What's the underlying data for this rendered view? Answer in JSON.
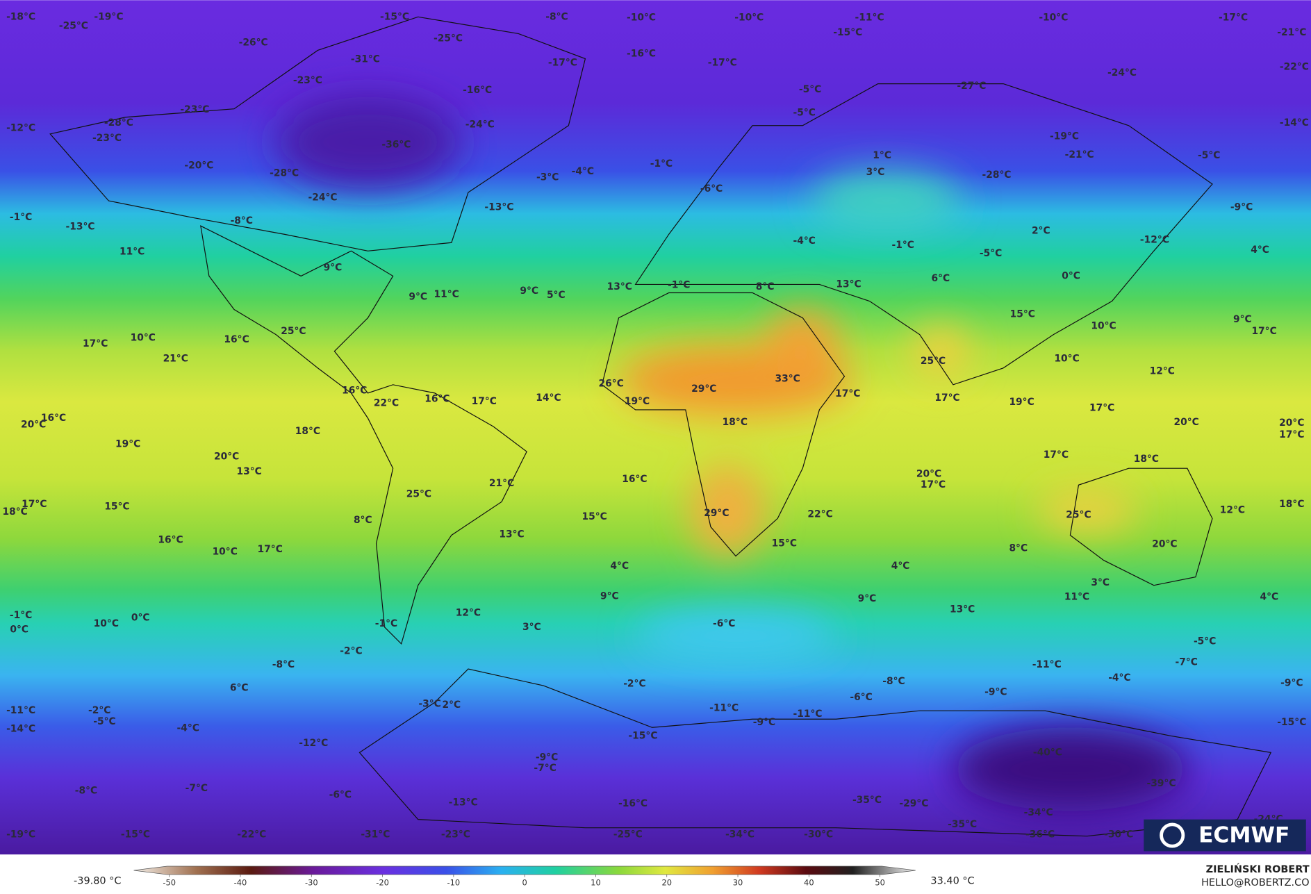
{
  "map": {
    "labels": [
      "-18°C",
      "-25°C",
      "-19°C",
      "-15°C",
      "-25°C",
      "-8°C",
      "-10°C",
      "-10°C",
      "-11°C",
      "-15°C",
      "-10°C",
      "-17°C",
      "-21°C",
      "-26°C",
      "-31°C",
      "-17°C",
      "-16°C",
      "-17°C",
      "-23°C",
      "-16°C",
      "-5°C",
      "-27°C",
      "-24°C",
      "-22°C",
      "-23°C",
      "-28°C",
      "-24°C",
      "-5°C",
      "-12°C",
      "-23°C",
      "-36°C",
      "-19°C",
      "-14°C",
      "-21°C",
      "-5°C",
      "1°C",
      "-20°C",
      "-28°C",
      "-3°C",
      "-4°C",
      "-1°C",
      "3°C",
      "-28°C",
      "-6°C",
      "-24°C",
      "-13°C",
      "-8°C",
      "-1°C",
      "-13°C",
      "-9°C",
      "2°C",
      "-12°C",
      "-4°C",
      "-1°C",
      "-5°C",
      "4°C",
      "11°C",
      "9°C",
      "6°C",
      "0°C",
      "13°C",
      "-1°C",
      "8°C",
      "13°C",
      "9°C",
      "11°C",
      "9°C",
      "5°C",
      "15°C",
      "9°C",
      "10°C",
      "17°C",
      "25°C",
      "17°C",
      "10°C",
      "16°C",
      "21°C",
      "25°C",
      "10°C",
      "12°C",
      "26°C",
      "29°C",
      "33°C",
      "16°C",
      "22°C",
      "16°C",
      "17°C",
      "14°C",
      "19°C",
      "17°C",
      "17°C",
      "19°C",
      "17°C",
      "18°C",
      "20°C",
      "16°C",
      "20°C",
      "20°C",
      "17°C",
      "18°C",
      "19°C",
      "20°C",
      "13°C",
      "17°C",
      "18°C",
      "21°C",
      "16°C",
      "20°C",
      "17°C",
      "25°C",
      "17°C",
      "18°C",
      "15°C",
      "12°C",
      "18°C",
      "22°C",
      "29°C",
      "25°C",
      "8°C",
      "15°C",
      "13°C",
      "16°C",
      "15°C",
      "8°C",
      "20°C",
      "10°C",
      "17°C",
      "4°C",
      "4°C",
      "3°C",
      "9°C",
      "11°C",
      "9°C",
      "4°C",
      "13°C",
      "12°C",
      "-1°C",
      "0°C",
      "10°C",
      "0°C",
      "-1°C",
      "-6°C",
      "3°C",
      "-5°C",
      "-2°C",
      "-7°C",
      "-8°C",
      "-11°C",
      "-4°C",
      "-8°C",
      "-2°C",
      "6°C",
      "-9°C",
      "-6°C",
      "-9°C",
      "-3°C",
      "2°C",
      "-11°C",
      "-11°C",
      "-2°C",
      "-5°C",
      "-11°C",
      "-14°C",
      "-9°C",
      "-15°C",
      "-4°C",
      "-15°C",
      "-12°C",
      "-40°C",
      "-9°C",
      "-7°C",
      "-7°C",
      "-39°C",
      "-6°C",
      "-8°C",
      "-35°C",
      "-29°C",
      "-16°C",
      "-13°C",
      "-34°C",
      "-35°C",
      "-24°C",
      "-19°C",
      "-15°C",
      "-22°C",
      "-31°C",
      "-23°C",
      "-25°C",
      "-34°C",
      "-30°C",
      "-36°C",
      "-30°C"
    ]
  },
  "colorbar": {
    "min_label": "-39.80 °C",
    "max_label": "33.40 °C",
    "range": [
      -55,
      55
    ],
    "ticks": [
      -50,
      -40,
      -30,
      -20,
      -10,
      0,
      10,
      20,
      30,
      40,
      50
    ]
  },
  "logo": "ECMWF",
  "credit": {
    "name": "ZIELIŃSKI ROBERT",
    "email": "HELLO@ROBERTZ.CO"
  }
}
